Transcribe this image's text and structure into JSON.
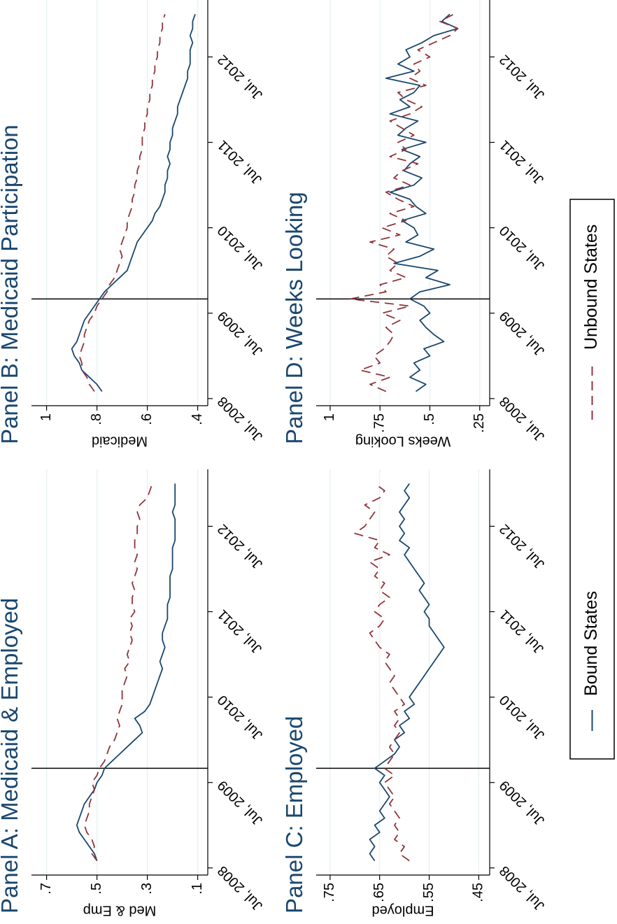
{
  "chart_data": [
    {
      "type": "line",
      "title": "Panel A: Medicaid & Employed",
      "y_label": "Med & Emp",
      "x": [
        "2008-08",
        "2008-09",
        "2008-10",
        "2008-11",
        "2008-12",
        "2009-01",
        "2009-02",
        "2009-03",
        "2009-04",
        "2009-05",
        "2009-06",
        "2009-07",
        "2009-08",
        "2009-09",
        "2009-10",
        "2009-11",
        "2009-12",
        "2010-01",
        "2010-02",
        "2010-03",
        "2010-04",
        "2010-05",
        "2010-06",
        "2010-07",
        "2010-08",
        "2010-09",
        "2010-10",
        "2010-11",
        "2010-12",
        "2011-01",
        "2011-02",
        "2011-03",
        "2011-04",
        "2011-05",
        "2011-06",
        "2011-07",
        "2011-08",
        "2011-09",
        "2011-10",
        "2011-11",
        "2011-12",
        "2012-01",
        "2012-02",
        "2012-03",
        "2012-04",
        "2012-05",
        "2012-06",
        "2012-07",
        "2012-08",
        "2012-09",
        "2012-10",
        "2012-11",
        "2012-12",
        "2013-01"
      ],
      "series": [
        {
          "name": "Bound States",
          "color": "#1a476f",
          "line_style": "solid",
          "values": [
            0.5,
            0.51,
            0.53,
            0.55,
            0.57,
            0.58,
            0.57,
            0.56,
            0.55,
            0.53,
            0.51,
            0.5,
            0.48,
            0.47,
            0.44,
            0.41,
            0.38,
            0.35,
            0.32,
            0.33,
            0.35,
            0.31,
            0.29,
            0.28,
            0.27,
            0.26,
            0.25,
            0.24,
            0.25,
            0.24,
            0.23,
            0.24,
            0.24,
            0.23,
            0.22,
            0.22,
            0.22,
            0.21,
            0.21,
            0.21,
            0.21,
            0.2,
            0.2,
            0.2,
            0.2,
            0.19,
            0.19,
            0.19,
            0.19,
            0.2,
            0.19,
            0.19,
            0.19,
            0.19
          ]
        },
        {
          "name": "Unbound States",
          "color": "#90353b",
          "line_style": "dashed",
          "values": [
            0.5,
            0.52,
            0.51,
            0.52,
            0.54,
            0.55,
            0.54,
            0.53,
            0.53,
            0.52,
            0.51,
            0.52,
            0.5,
            0.49,
            0.47,
            0.46,
            0.45,
            0.43,
            0.42,
            0.41,
            0.42,
            0.41,
            0.4,
            0.4,
            0.4,
            0.39,
            0.38,
            0.39,
            0.37,
            0.38,
            0.37,
            0.36,
            0.37,
            0.36,
            0.37,
            0.35,
            0.36,
            0.36,
            0.35,
            0.36,
            0.35,
            0.34,
            0.35,
            0.34,
            0.35,
            0.35,
            0.34,
            0.34,
            0.33,
            0.34,
            0.33,
            0.3,
            0.29,
            0.28
          ]
        }
      ],
      "xlim": [
        "2008-06",
        "2013-03"
      ],
      "xticks": [
        {
          "value": "2008-07",
          "label": "Jul, 2008"
        },
        {
          "value": "2009-07",
          "label": "Jul, 2009"
        },
        {
          "value": "2010-07",
          "label": "Jul, 2010"
        },
        {
          "value": "2011-07",
          "label": "Jul, 2011"
        },
        {
          "value": "2012-07",
          "label": "Jul, 2012"
        }
      ],
      "ylim": [
        0.06,
        0.76
      ],
      "yticks": [
        {
          "value": 0.1,
          "label": ".1"
        },
        {
          "value": 0.3,
          "label": ".3"
        },
        {
          "value": 0.5,
          "label": ".5"
        },
        {
          "value": 0.7,
          "label": ".7"
        }
      ],
      "reference_line": "2009-09",
      "grid": true
    },
    {
      "type": "line",
      "title": "Panel B: Medicaid Participation",
      "y_label": "Medicaid",
      "x": [
        "2008-08",
        "2008-09",
        "2008-10",
        "2008-11",
        "2008-12",
        "2009-01",
        "2009-02",
        "2009-03",
        "2009-04",
        "2009-05",
        "2009-06",
        "2009-07",
        "2009-08",
        "2009-09",
        "2009-10",
        "2009-11",
        "2009-12",
        "2010-01",
        "2010-02",
        "2010-03",
        "2010-04",
        "2010-05",
        "2010-06",
        "2010-07",
        "2010-08",
        "2010-09",
        "2010-10",
        "2010-11",
        "2010-12",
        "2011-01",
        "2011-02",
        "2011-03",
        "2011-04",
        "2011-05",
        "2011-06",
        "2011-07",
        "2011-08",
        "2011-09",
        "2011-10",
        "2011-11",
        "2011-12",
        "2012-01",
        "2012-02",
        "2012-03",
        "2012-04",
        "2012-05",
        "2012-06",
        "2012-07",
        "2012-08",
        "2012-09",
        "2012-10",
        "2012-11",
        "2012-12",
        "2013-01"
      ],
      "series": [
        {
          "name": "Bound States",
          "color": "#1a476f",
          "line_style": "solid",
          "values": [
            0.78,
            0.8,
            0.83,
            0.86,
            0.87,
            0.89,
            0.9,
            0.88,
            0.87,
            0.86,
            0.85,
            0.83,
            0.81,
            0.79,
            0.77,
            0.74,
            0.71,
            0.68,
            0.67,
            0.66,
            0.65,
            0.64,
            0.62,
            0.6,
            0.58,
            0.57,
            0.55,
            0.54,
            0.53,
            0.53,
            0.52,
            0.52,
            0.51,
            0.52,
            0.51,
            0.51,
            0.5,
            0.5,
            0.49,
            0.48,
            0.48,
            0.47,
            0.46,
            0.45,
            0.44,
            0.44,
            0.43,
            0.43,
            0.43,
            0.42,
            0.43,
            0.42,
            0.42,
            0.41
          ]
        },
        {
          "name": "Unbound States",
          "color": "#90353b",
          "line_style": "dashed",
          "values": [
            0.81,
            0.83,
            0.84,
            0.86,
            0.86,
            0.87,
            0.86,
            0.85,
            0.85,
            0.84,
            0.83,
            0.81,
            0.8,
            0.78,
            0.76,
            0.75,
            0.73,
            0.72,
            0.71,
            0.7,
            0.71,
            0.7,
            0.69,
            0.68,
            0.68,
            0.67,
            0.66,
            0.66,
            0.65,
            0.65,
            0.64,
            0.64,
            0.63,
            0.63,
            0.62,
            0.62,
            0.62,
            0.61,
            0.61,
            0.6,
            0.6,
            0.59,
            0.59,
            0.58,
            0.58,
            0.57,
            0.57,
            0.56,
            0.56,
            0.55,
            0.55,
            0.54,
            0.54,
            0.53
          ]
        }
      ],
      "xlim": [
        "2008-06",
        "2013-03"
      ],
      "xticks": [
        {
          "value": "2008-07",
          "label": "Jul, 2008"
        },
        {
          "value": "2009-07",
          "label": "Jul, 2009"
        },
        {
          "value": "2010-07",
          "label": "Jul, 2010"
        },
        {
          "value": "2011-07",
          "label": "Jul, 2011"
        },
        {
          "value": "2012-07",
          "label": "Jul, 2012"
        }
      ],
      "ylim": [
        0.36,
        1.06
      ],
      "yticks": [
        {
          "value": 0.4,
          "label": ".4"
        },
        {
          "value": 0.6,
          "label": ".6"
        },
        {
          "value": 0.8,
          "label": ".8"
        },
        1
      ],
      "reference_line": "2009-09",
      "grid": true
    },
    {
      "type": "line",
      "title": "Panel C: Employed",
      "y_label": "Employed",
      "x": [
        "2008-08",
        "2008-09",
        "2008-10",
        "2008-11",
        "2008-12",
        "2009-01",
        "2009-02",
        "2009-03",
        "2009-04",
        "2009-05",
        "2009-06",
        "2009-07",
        "2009-08",
        "2009-09",
        "2009-10",
        "2009-11",
        "2009-12",
        "2010-01",
        "2010-02",
        "2010-03",
        "2010-04",
        "2010-05",
        "2010-06",
        "2010-07",
        "2010-08",
        "2010-09",
        "2010-10",
        "2010-11",
        "2010-12",
        "2011-01",
        "2011-02",
        "2011-03",
        "2011-04",
        "2011-05",
        "2011-06",
        "2011-07",
        "2011-08",
        "2011-09",
        "2011-10",
        "2011-11",
        "2011-12",
        "2012-01",
        "2012-02",
        "2012-03",
        "2012-04",
        "2012-05",
        "2012-06",
        "2012-07",
        "2012-08",
        "2012-09",
        "2012-10",
        "2012-11",
        "2012-12",
        "2013-01"
      ],
      "series": [
        {
          "name": "Bound States",
          "color": "#1a476f",
          "line_style": "solid",
          "values": [
            0.66,
            0.67,
            0.66,
            0.67,
            0.65,
            0.66,
            0.64,
            0.65,
            0.64,
            0.63,
            0.64,
            0.65,
            0.64,
            0.66,
            0.64,
            0.62,
            0.61,
            0.62,
            0.6,
            0.61,
            0.59,
            0.6,
            0.58,
            0.59,
            0.58,
            0.57,
            0.56,
            0.55,
            0.54,
            0.53,
            0.52,
            0.53,
            0.54,
            0.55,
            0.55,
            0.56,
            0.55,
            0.56,
            0.57,
            0.56,
            0.57,
            0.58,
            0.59,
            0.6,
            0.59,
            0.61,
            0.6,
            0.61,
            0.6,
            0.61,
            0.6,
            0.59,
            0.6,
            0.59
          ]
        },
        {
          "name": "Unbound States",
          "color": "#90353b",
          "line_style": "dashed",
          "values": [
            0.59,
            0.61,
            0.6,
            0.62,
            0.61,
            0.62,
            0.61,
            0.62,
            0.63,
            0.62,
            0.63,
            0.64,
            0.62,
            0.64,
            0.63,
            0.62,
            0.63,
            0.62,
            0.61,
            0.62,
            0.61,
            0.62,
            0.6,
            0.61,
            0.62,
            0.63,
            0.62,
            0.63,
            0.64,
            0.63,
            0.65,
            0.66,
            0.67,
            0.65,
            0.64,
            0.66,
            0.65,
            0.63,
            0.65,
            0.64,
            0.66,
            0.65,
            0.67,
            0.63,
            0.66,
            0.65,
            0.7,
            0.68,
            0.67,
            0.66,
            0.68,
            0.65,
            0.64,
            0.66
          ]
        }
      ],
      "xlim": [
        "2008-06",
        "2013-03"
      ],
      "xticks": [
        {
          "value": "2008-07",
          "label": "Jul, 2008"
        },
        {
          "value": "2009-07",
          "label": "Jul, 2009"
        },
        {
          "value": "2010-07",
          "label": "Jul, 2010"
        },
        {
          "value": "2011-07",
          "label": "Jul, 2011"
        },
        {
          "value": "2012-07",
          "label": "Jul, 2012"
        }
      ],
      "ylim": [
        0.428,
        0.778
      ],
      "yticks": [
        {
          "value": 0.45,
          "label": ".45"
        },
        {
          "value": 0.55,
          "label": ".55"
        },
        {
          "value": 0.65,
          "label": ".65"
        },
        {
          "value": 0.75,
          "label": ".75"
        }
      ],
      "reference_line": "2009-09",
      "grid": true
    },
    {
      "type": "line",
      "title": "Panel D: Weeks Looking",
      "y_label": "Weeks Looking",
      "x": [
        "2008-08",
        "2008-09",
        "2008-10",
        "2008-11",
        "2008-12",
        "2009-01",
        "2009-02",
        "2009-03",
        "2009-04",
        "2009-05",
        "2009-06",
        "2009-07",
        "2009-08",
        "2009-09",
        "2009-10",
        "2009-11",
        "2009-12",
        "2010-01",
        "2010-02",
        "2010-03",
        "2010-04",
        "2010-05",
        "2010-06",
        "2010-07",
        "2010-08",
        "2010-09",
        "2010-10",
        "2010-11",
        "2010-12",
        "2011-01",
        "2011-02",
        "2011-03",
        "2011-04",
        "2011-05",
        "2011-06",
        "2011-07",
        "2011-08",
        "2011-09",
        "2011-10",
        "2011-11",
        "2011-12",
        "2012-01",
        "2012-02",
        "2012-03",
        "2012-04",
        "2012-05",
        "2012-06",
        "2012-07",
        "2012-08",
        "2012-09",
        "2012-10",
        "2012-11",
        "2012-12",
        "2013-01"
      ],
      "series": [
        {
          "name": "Bound States",
          "color": "#1a476f",
          "line_style": "solid",
          "values": [
            0.57,
            0.52,
            0.6,
            0.55,
            0.58,
            0.5,
            0.53,
            0.43,
            0.48,
            0.52,
            0.55,
            0.5,
            0.53,
            0.6,
            0.55,
            0.4,
            0.52,
            0.46,
            0.68,
            0.55,
            0.48,
            0.62,
            0.56,
            0.58,
            0.64,
            0.52,
            0.57,
            0.6,
            0.7,
            0.58,
            0.54,
            0.63,
            0.6,
            0.55,
            0.64,
            0.52,
            0.66,
            0.62,
            0.56,
            0.7,
            0.6,
            0.65,
            0.58,
            0.55,
            0.72,
            0.58,
            0.66,
            0.6,
            0.62,
            0.54,
            0.48,
            0.36,
            0.44,
            0.4
          ]
        },
        {
          "name": "Unbound States",
          "color": "#90353b",
          "line_style": "dashed",
          "values": [
            0.72,
            0.8,
            0.7,
            0.85,
            0.75,
            0.78,
            0.73,
            0.7,
            0.68,
            0.72,
            0.65,
            0.74,
            0.6,
            0.9,
            0.72,
            0.75,
            0.62,
            0.7,
            0.66,
            0.72,
            0.68,
            0.8,
            0.65,
            0.74,
            0.62,
            0.7,
            0.58,
            0.66,
            0.72,
            0.6,
            0.68,
            0.64,
            0.56,
            0.7,
            0.62,
            0.66,
            0.58,
            0.64,
            0.7,
            0.6,
            0.54,
            0.62,
            0.66,
            0.52,
            0.6,
            0.55,
            0.58,
            0.5,
            0.56,
            0.48,
            0.4,
            0.36,
            0.45,
            0.38
          ]
        }
      ],
      "xlim": [
        "2008-06",
        "2013-03"
      ],
      "xticks": [
        {
          "value": "2008-07",
          "label": "Jul, 2008"
        },
        {
          "value": "2009-07",
          "label": "Jul, 2009"
        },
        {
          "value": "2010-07",
          "label": "Jul, 2010"
        },
        {
          "value": "2011-07",
          "label": "Jul, 2011"
        },
        {
          "value": "2012-07",
          "label": "Jul, 2012"
        }
      ],
      "ylim": [
        0.2,
        1.07
      ],
      "yticks": [
        {
          "value": 0.25,
          "label": ".25"
        },
        {
          "value": 0.5,
          "label": ".5"
        },
        {
          "value": 0.75,
          "label": ".75"
        },
        1
      ],
      "reference_line": "2009-09",
      "grid": true
    }
  ]
}
